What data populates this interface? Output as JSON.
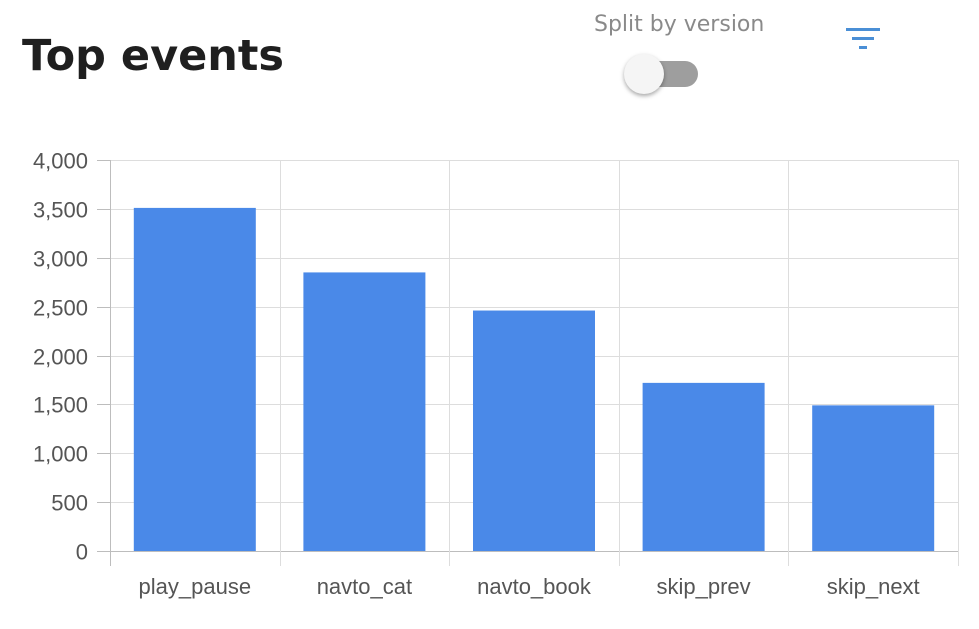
{
  "header": {
    "title": "Top events",
    "split_label": "Split by version",
    "split_enabled": false
  },
  "icons": {
    "filter": "filter-icon"
  },
  "colors": {
    "bar": "#4a89e8",
    "grid": "#dddddd",
    "axis": "#bdbdbd",
    "filter_icon": "#4a8fd6",
    "toggle_track": "#9e9e9e"
  },
  "chart_data": {
    "type": "bar",
    "categories": [
      "play_pause",
      "navto_cat",
      "navto_book",
      "skip_prev",
      "skip_next"
    ],
    "values": [
      3510,
      2850,
      2460,
      1720,
      1490
    ],
    "ylim": [
      0,
      4000
    ],
    "yticks": [
      0,
      500,
      1000,
      1500,
      2000,
      2500,
      3000,
      3500,
      4000
    ],
    "ytick_labels": [
      "0",
      "500",
      "1,000",
      "1,500",
      "2,000",
      "2,500",
      "3,000",
      "3,500",
      "4,000"
    ],
    "grid": true,
    "legend": "none"
  }
}
